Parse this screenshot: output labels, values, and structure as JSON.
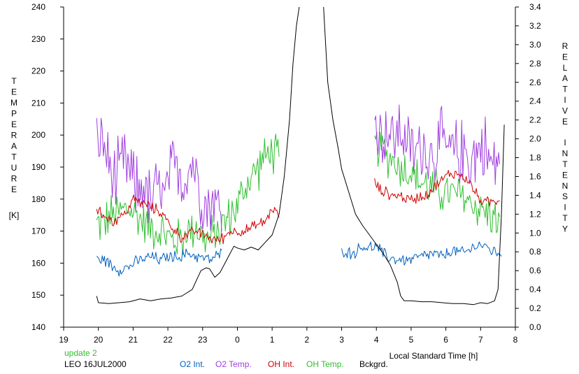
{
  "chart_data": {
    "type": "line",
    "xlabel": "Local Standard Time [h]",
    "ylabel_left_letters": [
      "T",
      "E",
      "M",
      "P",
      "E",
      "R",
      "A",
      "T",
      "U",
      "R",
      "E"
    ],
    "ylabel_left_unit": "[K]",
    "ylabel_right_words": [
      [
        "R",
        "E",
        "L",
        "A",
        "T",
        "I",
        "V",
        "E"
      ],
      [
        "I",
        "N",
        "T",
        "E",
        "N",
        "S",
        "I",
        "T",
        "Y"
      ]
    ],
    "xlim": [
      19,
      32
    ],
    "x_ticks": [
      19,
      20,
      21,
      22,
      23,
      24,
      25,
      26,
      27,
      28,
      29,
      30,
      31,
      32
    ],
    "x_tick_labels": [
      "19",
      "20",
      "21",
      "22",
      "23",
      "0",
      "1",
      "2",
      "3",
      "4",
      "5",
      "6",
      "7",
      "8"
    ],
    "ylim_left": [
      140,
      240
    ],
    "y_left_ticks": [
      140,
      150,
      160,
      170,
      180,
      190,
      200,
      210,
      220,
      230,
      240
    ],
    "y_left_tick_labels": [
      "140",
      "150",
      "160",
      "170",
      "180",
      "190",
      "200",
      "210",
      "220",
      "230",
      "240"
    ],
    "ylim_right": [
      0,
      3.4
    ],
    "y_right_ticks": [
      0,
      0.2,
      0.4,
      0.6,
      0.8,
      1.0,
      1.2,
      1.4,
      1.6,
      1.8,
      2.0,
      2.2,
      2.4,
      2.6,
      2.8,
      3.0,
      3.2,
      3.4
    ],
    "y_right_tick_labels": [
      "0.0",
      "0.2",
      "0.4",
      "0.6",
      "0.8",
      "1.0",
      "1.2",
      "1.4",
      "1.6",
      "1.8",
      "2.0",
      "2.2",
      "2.4",
      "2.6",
      "2.8",
      "3.0",
      "3.2",
      "3.4"
    ],
    "grid": false,
    "legend_position": "bottom",
    "info_update": "update 2",
    "info_station": "LEO 16JUL2000",
    "series": [
      {
        "name": "O2 Int.",
        "color": "#0060c0",
        "axis": "left",
        "segments": [
          {
            "x": [
              19.95,
              20.2,
              20.4,
              20.6,
              20.9,
              21.2,
              21.5,
              21.8,
              22.0,
              22.3,
              22.6,
              22.9,
              23.2,
              23.55
            ],
            "y": [
              161,
              161,
              159,
              158,
              159,
              161,
              162,
              161,
              162,
              162,
              163,
              162,
              161,
              163
            ]
          },
          {
            "x": [
              27.0,
              27.3,
              27.6,
              28.0,
              28.3,
              28.6,
              28.9,
              29.3,
              29.6,
              29.9,
              30.2,
              30.5,
              30.8,
              31.0,
              31.3,
              31.6
            ],
            "y": [
              164,
              163,
              165,
              165,
              162,
              161,
              161,
              162,
              163,
              162,
              164,
              163,
              165,
              166,
              164,
              163
            ]
          }
        ]
      },
      {
        "name": "O2 Temp.",
        "color": "#a040e0",
        "axis": "left",
        "segments": [
          {
            "x": [
              19.95,
              20.1,
              20.3,
              20.5,
              20.7,
              20.9,
              21.1,
              21.3,
              21.5,
              21.7,
              21.9,
              22.1,
              22.3,
              22.5,
              22.7,
              22.9,
              23.1,
              23.3,
              23.55
            ],
            "y": [
              195,
              200,
              190,
              185,
              192,
              188,
              183,
              185,
              178,
              184,
              180,
              188,
              190,
              186,
              192,
              185,
              178,
              180,
              175
            ]
          },
          {
            "x": [
              27.95,
              28.1,
              28.3,
              28.5,
              28.7,
              28.9,
              29.1,
              29.3,
              29.5,
              29.7,
              29.9,
              30.1,
              30.3,
              30.5,
              30.7,
              30.9,
              31.1,
              31.3,
              31.55
            ],
            "y": [
              205,
              200,
              202,
              198,
              203,
              196,
              194,
              198,
              193,
              196,
              197,
              195,
              194,
              196,
              192,
              195,
              197,
              190,
              194
            ]
          }
        ]
      },
      {
        "name": "OH Int.",
        "color": "#d00000",
        "axis": "left",
        "segments": [
          {
            "x": [
              19.95,
              20.2,
              20.4,
              20.6,
              20.8,
              21.0,
              21.2,
              21.4,
              21.6,
              21.8,
              22.0,
              22.2,
              22.4,
              22.6,
              22.8,
              23.0,
              23.2,
              23.4,
              23.6,
              23.8,
              24.0,
              24.2,
              24.4,
              24.6,
              24.8,
              25.0,
              25.2
            ],
            "y": [
              176,
              175,
              173,
              174,
              176,
              180,
              179,
              178,
              177,
              176,
              173,
              170,
              168,
              169,
              170,
              169,
              168,
              167,
              168,
              170,
              170,
              170,
              171,
              172,
              173,
              177,
              175
            ]
          },
          {
            "x": [
              27.95,
              28.1,
              28.3,
              28.5,
              28.7,
              28.9,
              29.1,
              29.3,
              29.5,
              29.7,
              29.9,
              30.1,
              30.3,
              30.5,
              30.7,
              30.9,
              31.1,
              31.3,
              31.55
            ],
            "y": [
              185,
              183,
              182,
              181,
              181,
              180,
              180,
              181,
              182,
              184,
              186,
              188,
              188,
              187,
              185,
              181,
              179,
              179,
              180
            ]
          }
        ]
      },
      {
        "name": "OH Temp.",
        "color": "#30c030",
        "axis": "left",
        "segments": [
          {
            "x": [
              19.95,
              20.2,
              20.4,
              20.6,
              20.8,
              21.0,
              21.2,
              21.4,
              21.6,
              21.8,
              22.0,
              22.2,
              22.4,
              22.6,
              22.8,
              23.0,
              23.2,
              23.4,
              23.6,
              23.8,
              24.0,
              24.2,
              24.4,
              24.6,
              24.8,
              25.0,
              25.2
            ],
            "y": [
              172,
              173,
              175,
              176,
              177,
              176,
              174,
              172,
              171,
              170,
              168,
              167,
              168,
              170,
              172,
              168,
              167,
              170,
              172,
              175,
              178,
              183,
              187,
              190,
              193,
              195,
              192
            ]
          },
          {
            "x": [
              27.95,
              28.1,
              28.3,
              28.5,
              28.7,
              28.9,
              29.1,
              29.3,
              29.5,
              29.7,
              29.9,
              30.1,
              30.3,
              30.5,
              30.7,
              30.9,
              31.1,
              31.3,
              31.55
            ],
            "y": [
              197,
              196,
              194,
              192,
              190,
              189,
              187,
              185,
              184,
              183,
              182,
              182,
              181,
              181,
              179,
              178,
              176,
              175,
              173
            ]
          }
        ]
      },
      {
        "name": "Bckgrd.",
        "color": "#000000",
        "axis": "right",
        "segments": [
          {
            "x": [
              19.95,
              20.0,
              20.3,
              20.6,
              20.9,
              21.2,
              21.5,
              21.8,
              22.1,
              22.4,
              22.7,
              22.95,
              23.1,
              23.2,
              23.35,
              23.5,
              23.7,
              23.9,
              24.0,
              24.2,
              24.4,
              24.6,
              24.8,
              25.0,
              25.2,
              25.35,
              25.5,
              25.6,
              25.7,
              25.78
            ],
            "y": [
              0.33,
              0.26,
              0.25,
              0.26,
              0.27,
              0.3,
              0.28,
              0.3,
              0.31,
              0.33,
              0.4,
              0.6,
              0.63,
              0.62,
              0.53,
              0.58,
              0.72,
              0.86,
              0.84,
              0.82,
              0.85,
              0.82,
              0.9,
              0.98,
              1.2,
              1.6,
              2.2,
              2.8,
              3.2,
              3.4
            ]
          },
          {
            "x": [
              26.48,
              26.6,
              26.75,
              26.9,
              27.0,
              27.2,
              27.4,
              27.6,
              27.8,
              28.0,
              28.2,
              28.4,
              28.6,
              28.7,
              28.8,
              29.0,
              29.3,
              29.6,
              29.9,
              30.2,
              30.5,
              30.8,
              31.0,
              31.2,
              31.4,
              31.5,
              31.6,
              31.68
            ],
            "y": [
              3.4,
              2.6,
              2.2,
              1.9,
              1.68,
              1.44,
              1.2,
              1.08,
              0.98,
              0.88,
              0.78,
              0.66,
              0.48,
              0.33,
              0.28,
              0.28,
              0.27,
              0.27,
              0.26,
              0.25,
              0.25,
              0.24,
              0.26,
              0.25,
              0.28,
              0.4,
              1.2,
              2.15
            ]
          }
        ]
      }
    ]
  }
}
